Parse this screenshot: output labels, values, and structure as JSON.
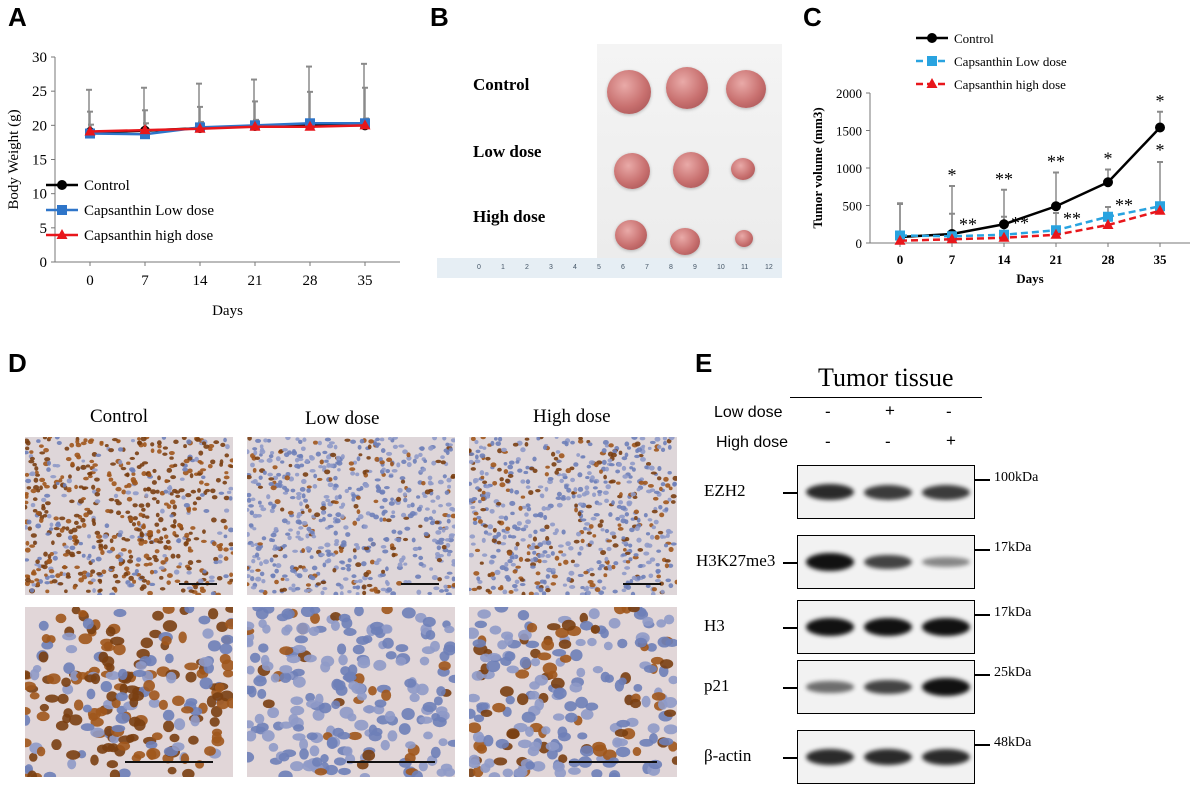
{
  "panels": {
    "a": "A",
    "b": "B",
    "c": "C",
    "d": "D",
    "e": "E"
  },
  "chart_data": [
    {
      "panel": "A",
      "type": "line",
      "xlabel": "Days",
      "ylabel": "Body  Weight  (g)",
      "x": [
        0,
        7,
        14,
        21,
        28,
        35
      ],
      "ylim": [
        0,
        30
      ],
      "yticks": [
        "0",
        "5",
        "10",
        "15",
        "20",
        "25",
        "30"
      ],
      "xticks": [
        "0",
        "7",
        "14",
        "21",
        "28",
        "35"
      ],
      "grid": false,
      "legend": "lower-left",
      "series": [
        {
          "name": "Control",
          "values": [
            19.0,
            19.2,
            19.6,
            19.9,
            20.0,
            20.0
          ],
          "color": "#000000",
          "marker": "circle",
          "error": [
            6.2,
            6.3,
            6.5,
            6.8,
            8.6,
            9.0
          ]
        },
        {
          "name": "Capsanthin Low dose",
          "values": [
            18.8,
            18.7,
            19.7,
            20.0,
            20.3,
            20.3
          ],
          "color": "#2e75c9",
          "marker": "square",
          "error": [
            3.2,
            3.5,
            3.0,
            3.5,
            4.6,
            5.2
          ]
        },
        {
          "name": "Capsanthin high dose",
          "values": [
            19.1,
            19.3,
            19.5,
            19.8,
            19.8,
            20.0
          ],
          "color": "#e8161b",
          "marker": "triangle",
          "error": [
            1.0,
            1.0,
            1.0,
            1.0,
            1.0,
            1.0
          ]
        }
      ]
    },
    {
      "panel": "C",
      "type": "line",
      "xlabel": "Days",
      "ylabel": "Tumor volume  (mm3)",
      "x": [
        0,
        7,
        14,
        21,
        28,
        35
      ],
      "ylim": [
        0,
        2000
      ],
      "yticks": [
        "0",
        "500",
        "1000",
        "1500",
        "2000"
      ],
      "xticks": [
        "0",
        "7",
        "14",
        "21",
        "28",
        "35"
      ],
      "grid": false,
      "legend": "top-left",
      "series": [
        {
          "name": "Control",
          "values": [
            80,
            120,
            250,
            490,
            810,
            1540
          ],
          "color": "#000000",
          "marker": "circle",
          "error": [
            450,
            640,
            460,
            450,
            170,
            210
          ]
        },
        {
          "name": "Capsanthin Low dose",
          "values": [
            100,
            90,
            110,
            170,
            350,
            490
          ],
          "color": "#29a3e0",
          "marker": "square",
          "error": [
            420,
            300,
            240,
            230,
            130,
            590
          ]
        },
        {
          "name": "Capsanthin high dose",
          "values": [
            30,
            50,
            70,
            110,
            240,
            430
          ],
          "color": "#e8161b",
          "marker": "triangle",
          "error": [
            0,
            0,
            0,
            0,
            0,
            0
          ]
        }
      ],
      "annotations": {
        "upper": [
          "",
          "*",
          "**",
          "**",
          "*",
          "*"
        ],
        "lower": [
          "",
          "**",
          "**",
          "**",
          "**",
          "*"
        ]
      }
    }
  ],
  "panel_b": {
    "rows": [
      "Control",
      "Low dose",
      "High dose"
    ],
    "ruler_numbers": [
      "0",
      "1",
      "2",
      "3",
      "4",
      "5",
      "6",
      "7",
      "8",
      "9",
      "10",
      "11",
      "12"
    ]
  },
  "panel_d": {
    "columns": [
      "Control",
      "Low dose",
      "High dose"
    ]
  },
  "panel_e": {
    "title": "Tumor tissue",
    "conditions": [
      {
        "label": "Low dose",
        "values": [
          "-",
          "+",
          "-"
        ]
      },
      {
        "label": "High dose",
        "values": [
          "-",
          "-",
          "+"
        ]
      }
    ],
    "blots": [
      {
        "protein": "EZH2",
        "marker": "100kDa",
        "intensity": [
          0.85,
          0.75,
          0.75
        ]
      },
      {
        "protein": "H3K27me3",
        "marker": "17kDa",
        "intensity": [
          1.0,
          0.7,
          0.3
        ]
      },
      {
        "protein": "H3",
        "marker": "17kDa",
        "intensity": [
          1.0,
          1.0,
          1.0
        ]
      },
      {
        "protein": "p21",
        "marker": "25kDa",
        "intensity": [
          0.45,
          0.7,
          1.0
        ]
      },
      {
        "protein": "β-actin",
        "marker": "48kDa",
        "intensity": [
          0.85,
          0.85,
          0.85
        ]
      }
    ]
  }
}
